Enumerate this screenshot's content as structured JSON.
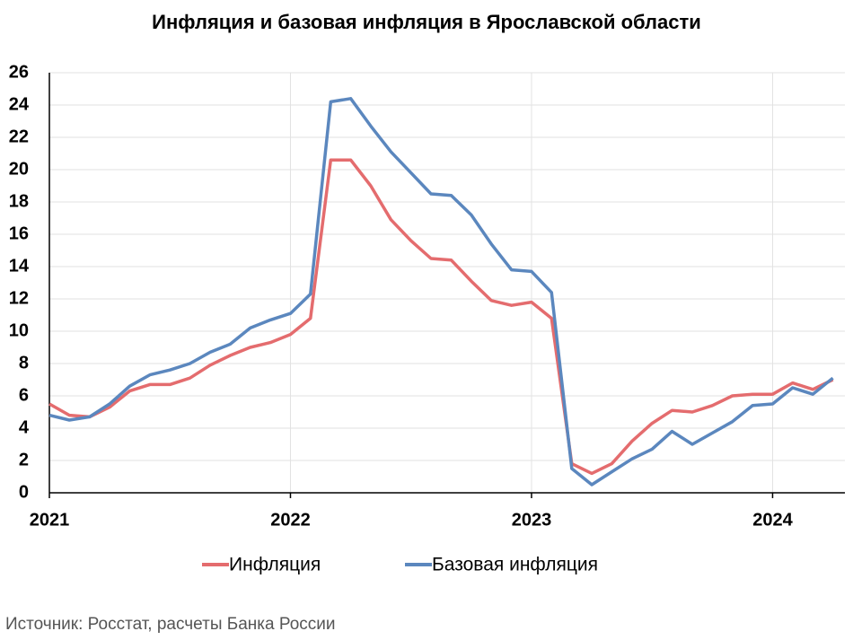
{
  "chart_data": {
    "type": "line",
    "title": "Инфляция и базовая инфляция в Ярославской области",
    "source": "Источник: Росстат, расчеты Банка России",
    "x": [
      2021,
      2021.083,
      2021.167,
      2021.25,
      2021.333,
      2021.417,
      2021.5,
      2021.583,
      2021.667,
      2021.75,
      2021.833,
      2021.917,
      2022,
      2022.083,
      2022.167,
      2022.25,
      2022.333,
      2022.417,
      2022.5,
      2022.583,
      2022.667,
      2022.75,
      2022.833,
      2022.917,
      2023,
      2023.083,
      2023.167,
      2023.25,
      2023.333,
      2023.417,
      2023.5,
      2023.583,
      2023.667,
      2023.75,
      2023.833,
      2023.917,
      2024,
      2024.083,
      2024.167,
      2024.25
    ],
    "series": [
      {
        "name": "Инфляция",
        "color": "#e46c6e",
        "values": [
          5.5,
          4.8,
          4.7,
          5.3,
          6.3,
          6.7,
          6.7,
          7.1,
          7.9,
          8.5,
          9.0,
          9.3,
          9.8,
          10.8,
          20.6,
          20.6,
          19.0,
          16.9,
          15.6,
          14.5,
          14.4,
          13.1,
          11.9,
          11.6,
          11.8,
          10.8,
          1.8,
          1.2,
          1.8,
          3.2,
          4.3,
          5.1,
          5.0,
          5.4,
          6.0,
          6.1,
          6.1,
          6.8,
          6.4,
          7.0
        ]
      },
      {
        "name": "Базовая инфляция",
        "color": "#5b87be",
        "values": [
          4.8,
          4.5,
          4.7,
          5.5,
          6.6,
          7.3,
          7.6,
          8.0,
          8.7,
          9.2,
          10.2,
          10.7,
          11.1,
          12.3,
          24.2,
          24.4,
          22.7,
          21.1,
          19.8,
          18.5,
          18.4,
          17.2,
          15.4,
          13.8,
          13.7,
          12.4,
          1.5,
          0.5,
          1.3,
          2.1,
          2.7,
          3.8,
          3.0,
          3.7,
          4.4,
          5.4,
          5.5,
          6.5,
          6.1,
          7.1
        ]
      }
    ],
    "xlim": [
      2021,
      2024.3
    ],
    "xticks": [
      2021,
      2022,
      2023,
      2024
    ],
    "ylim": [
      0,
      26
    ],
    "yticks": [
      0,
      2,
      4,
      6,
      8,
      10,
      12,
      14,
      16,
      18,
      20,
      22,
      24,
      26
    ],
    "grid": true
  }
}
